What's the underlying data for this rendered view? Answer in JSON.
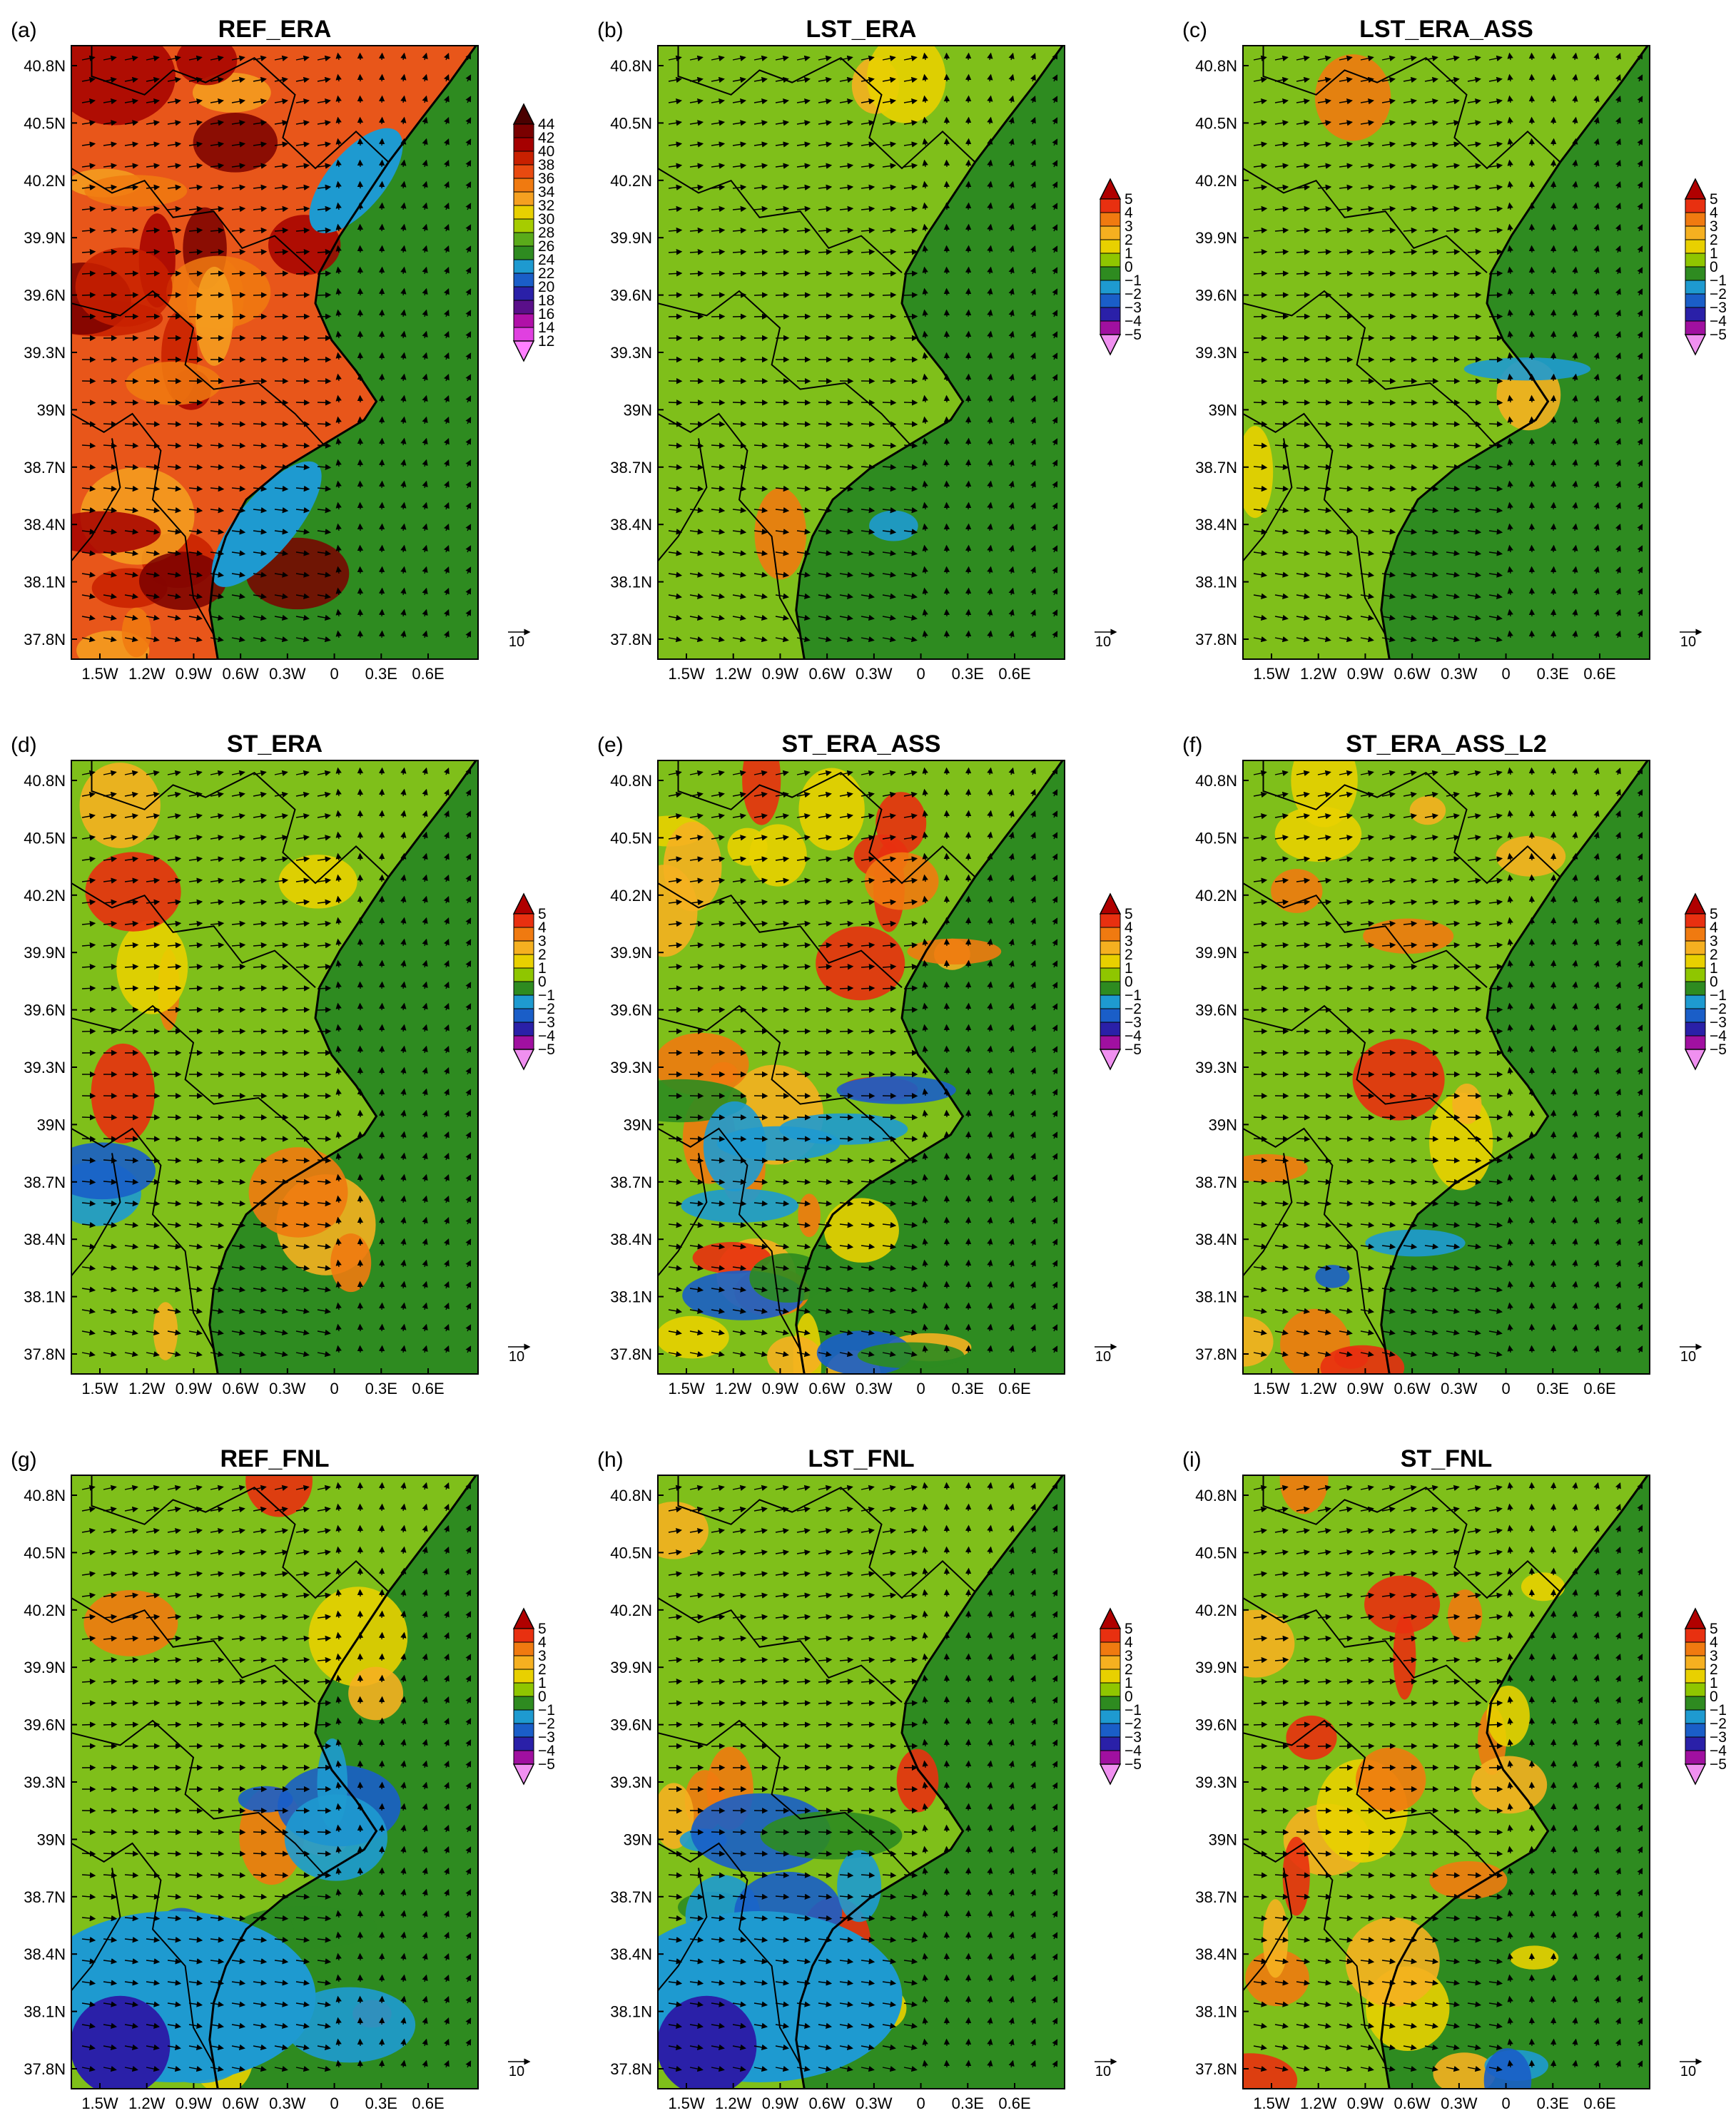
{
  "lat_ticks": [
    "40.8N",
    "40.5N",
    "40.2N",
    "39.9N",
    "39.6N",
    "39.3N",
    "39N",
    "38.7N",
    "38.4N",
    "38.1N",
    "37.8N"
  ],
  "lon_ticks": [
    "1.5W",
    "1.2W",
    "0.9W",
    "0.6W",
    "0.3W",
    "0",
    "0.3E",
    "0.6E"
  ],
  "colorbar_abs": {
    "labels": [
      "44",
      "42",
      "40",
      "38",
      "36",
      "34",
      "32",
      "30",
      "28",
      "26",
      "24",
      "22",
      "20",
      "18",
      "16",
      "14",
      "12"
    ],
    "colors": [
      "#4a0000",
      "#7a0000",
      "#a50000",
      "#c82000",
      "#e84a10",
      "#f07a10",
      "#f5a020",
      "#e8d000",
      "#a6cc00",
      "#5aab1a",
      "#2e8b20",
      "#1e9ad0",
      "#1a5ec8",
      "#2a20a8",
      "#5a0f8a",
      "#b010a8",
      "#e040e0",
      "#ff80ff"
    ]
  },
  "colorbar_diff": {
    "labels": [
      "5",
      "4",
      "3",
      "2",
      "1",
      "0",
      "−1",
      "−2",
      "−3",
      "−4",
      "−5"
    ],
    "colors": [
      "#b00000",
      "#e83010",
      "#f07a10",
      "#f5b020",
      "#e8d000",
      "#8fc600",
      "#2e8b20",
      "#1e9ad0",
      "#1a5ec8",
      "#2a20a8",
      "#a010a0",
      "#f090f0"
    ]
  },
  "vector_ref_label": "10",
  "panels": [
    {
      "letter": "(a)",
      "title": "REF_ERA",
      "scale": "abs"
    },
    {
      "letter": "(b)",
      "title": "LST_ERA",
      "scale": "diff"
    },
    {
      "letter": "(c)",
      "title": "LST_ERA_ASS",
      "scale": "diff"
    },
    {
      "letter": "(d)",
      "title": "ST_ERA",
      "scale": "diff"
    },
    {
      "letter": "(e)",
      "title": "ST_ERA_ASS",
      "scale": "diff"
    },
    {
      "letter": "(f)",
      "title": "ST_ERA_ASS_L2",
      "scale": "diff"
    },
    {
      "letter": "(g)",
      "title": "REF_FNL",
      "scale": "diff"
    },
    {
      "letter": "(h)",
      "title": "LST_FNL",
      "scale": "diff"
    },
    {
      "letter": "(i)",
      "title": "ST_FNL",
      "scale": "diff"
    }
  ],
  "map_features": {
    "coastline": "black",
    "borders": "black",
    "vectors": "black arrows"
  }
}
